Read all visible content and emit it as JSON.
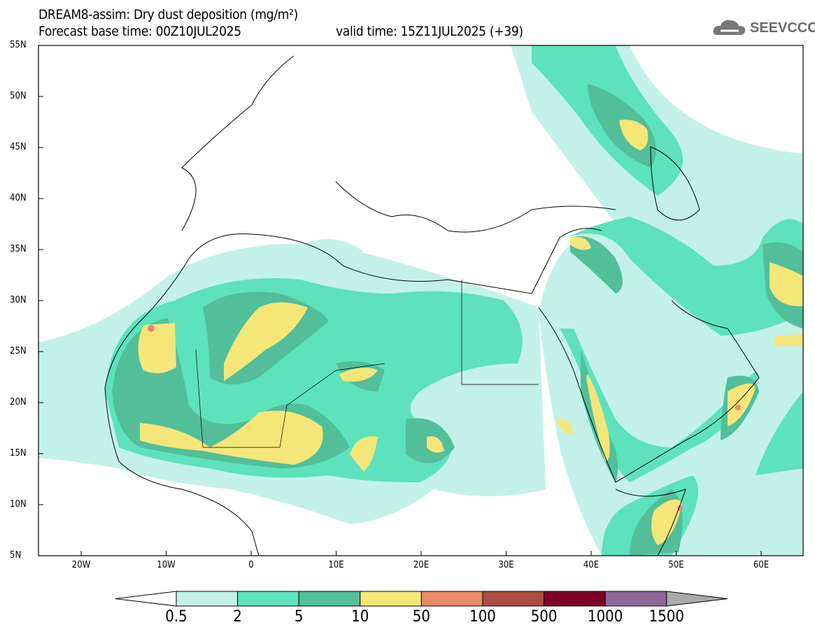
{
  "title": "DREAM8-assim: Dry dust deposition (mg/m²)",
  "subtitle_base": "Forecast base time: 00Z10JUL2025",
  "subtitle_valid": "valid time: 15Z11JUL2025 (+39)",
  "logo": "SEEVCCC",
  "lat_labels": [
    "55N",
    "50N",
    "45N",
    "40N",
    "35N",
    "30N",
    "25N",
    "20N",
    "15N",
    "10N",
    "5N"
  ],
  "lon_labels": [
    "20W",
    "10W",
    "0",
    "10E",
    "20E",
    "30E",
    "40E",
    "50E",
    "60E"
  ],
  "colorbar": {
    "labels": [
      "0.5",
      "2",
      "5",
      "10",
      "50",
      "100",
      "500",
      "1000",
      "1500"
    ],
    "colors": [
      "#c3f1ea",
      "#5de2bc",
      "#52bf9a",
      "#f5e67a",
      "#e88a67",
      "#ac4c42",
      "#7d0028",
      "#8f6799"
    ],
    "over_color": "#aaaaaa"
  }
}
